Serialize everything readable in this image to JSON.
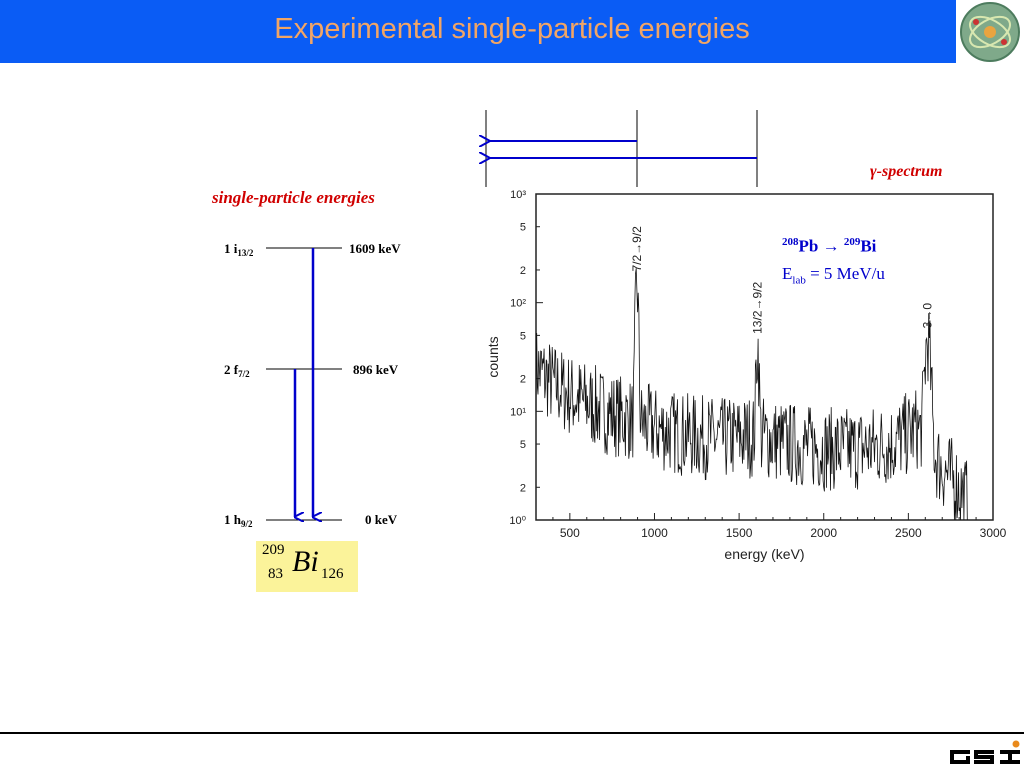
{
  "header": {
    "title": "Experimental single-particle energies"
  },
  "colors": {
    "title_bar": "#0a5cf5",
    "title_text": "#f2a565",
    "accent_red": "#d00000",
    "arrow_blue": "#0000cc",
    "nucleus_box": "#fbf39a"
  },
  "scheme": {
    "heading": "single-particle energies",
    "levels": [
      {
        "label": "1 i",
        "sub": "13/2",
        "energy": "1609 keV",
        "energy_kev": 1609
      },
      {
        "label": "2 f",
        "sub": "7/2",
        "energy": "896 keV",
        "energy_kev": 896
      },
      {
        "label": "1 h",
        "sub": "9/2",
        "energy": "0 keV",
        "energy_kev": 0
      }
    ],
    "nucleus": {
      "mass": "209",
      "charge": "83",
      "symbol": "Bi",
      "neutrons": "126"
    }
  },
  "spectrum": {
    "label": "γ-spectrum",
    "reaction": {
      "target_mass": "208",
      "target": "Pb",
      "arrow": "→",
      "product_mass": "209",
      "product": "Bi"
    },
    "beam": {
      "prefix": "E",
      "sub": "lab",
      "value": " = 5 MeV/u"
    }
  },
  "chart_data": {
    "type": "line",
    "xlabel": "energy (keV)",
    "ylabel": "counts",
    "xlim": [
      300,
      3000
    ],
    "ylim": [
      1,
      1000
    ],
    "y_log": true,
    "x_ticks": [
      "500",
      "1000",
      "1500",
      "2000",
      "2500",
      "3000"
    ],
    "y_decade_labels": [
      "10⁰",
      "10¹",
      "10²",
      "10³"
    ],
    "y_minor_labels": [
      "2",
      "5",
      "2",
      "5",
      "2",
      "5",
      "2",
      "5"
    ],
    "peaks": [
      {
        "energy": 896,
        "counts": 150,
        "label": "7/2→9/2"
      },
      {
        "energy": 1609,
        "counts": 40,
        "label": "13/2→9/2"
      },
      {
        "energy": 2614,
        "counts": 45,
        "label": "3→0"
      }
    ],
    "background": {
      "x": [
        300,
        400,
        500,
        600,
        700,
        800,
        900,
        1000,
        1200,
        1400,
        1600,
        1800,
        2000,
        2200,
        2400,
        2550,
        2700,
        2800,
        2850
      ],
      "y": [
        25,
        18,
        14,
        12,
        10,
        9,
        8,
        7,
        6,
        5.5,
        6,
        5,
        4.5,
        4.5,
        5,
        7,
        3,
        2,
        1.5
      ]
    }
  }
}
